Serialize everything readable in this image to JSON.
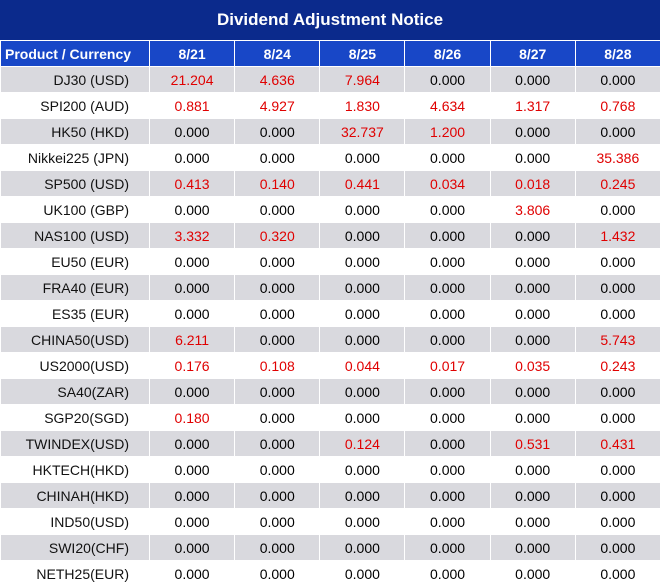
{
  "title": "Dividend Adjustment Notice",
  "header": {
    "product_label": "Product / Currency",
    "dates": [
      "8/21",
      "8/24",
      "8/25",
      "8/26",
      "8/27",
      "8/28"
    ]
  },
  "colors": {
    "title_bg": "#0b2a8c",
    "header_bg": "#1847c7",
    "highlight_text": "#e00000",
    "stripe": "#d9d9de"
  },
  "rows": [
    {
      "product": "DJ30 (USD)",
      "values": [
        "21.204",
        "4.636",
        "7.964",
        "0.000",
        "0.000",
        "0.000"
      ]
    },
    {
      "product": "SPI200 (AUD)",
      "values": [
        "0.881",
        "4.927",
        "1.830",
        "4.634",
        "1.317",
        "0.768"
      ]
    },
    {
      "product": "HK50 (HKD)",
      "values": [
        "0.000",
        "0.000",
        "32.737",
        "1.200",
        "0.000",
        "0.000"
      ]
    },
    {
      "product": "Nikkei225 (JPN)",
      "values": [
        "0.000",
        "0.000",
        "0.000",
        "0.000",
        "0.000",
        "35.386"
      ]
    },
    {
      "product": "SP500 (USD)",
      "values": [
        "0.413",
        "0.140",
        "0.441",
        "0.034",
        "0.018",
        "0.245"
      ]
    },
    {
      "product": "UK100 (GBP)",
      "values": [
        "0.000",
        "0.000",
        "0.000",
        "0.000",
        "3.806",
        "0.000"
      ]
    },
    {
      "product": "NAS100 (USD)",
      "values": [
        "3.332",
        "0.320",
        "0.000",
        "0.000",
        "0.000",
        "1.432"
      ]
    },
    {
      "product": "EU50 (EUR)",
      "values": [
        "0.000",
        "0.000",
        "0.000",
        "0.000",
        "0.000",
        "0.000"
      ]
    },
    {
      "product": "FRA40 (EUR)",
      "values": [
        "0.000",
        "0.000",
        "0.000",
        "0.000",
        "0.000",
        "0.000"
      ]
    },
    {
      "product": "ES35 (EUR)",
      "values": [
        "0.000",
        "0.000",
        "0.000",
        "0.000",
        "0.000",
        "0.000"
      ]
    },
    {
      "product": "CHINA50(USD)",
      "values": [
        "6.211",
        "0.000",
        "0.000",
        "0.000",
        "0.000",
        "5.743"
      ]
    },
    {
      "product": "US2000(USD)",
      "values": [
        "0.176",
        "0.108",
        "0.044",
        "0.017",
        "0.035",
        "0.243"
      ]
    },
    {
      "product": "SA40(ZAR)",
      "values": [
        "0.000",
        "0.000",
        "0.000",
        "0.000",
        "0.000",
        "0.000"
      ]
    },
    {
      "product": "SGP20(SGD)",
      "values": [
        "0.180",
        "0.000",
        "0.000",
        "0.000",
        "0.000",
        "0.000"
      ]
    },
    {
      "product": "TWINDEX(USD)",
      "values": [
        "0.000",
        "0.000",
        "0.124",
        "0.000",
        "0.531",
        "0.431"
      ]
    },
    {
      "product": "HKTECH(HKD)",
      "values": [
        "0.000",
        "0.000",
        "0.000",
        "0.000",
        "0.000",
        "0.000"
      ]
    },
    {
      "product": "CHINAH(HKD)",
      "values": [
        "0.000",
        "0.000",
        "0.000",
        "0.000",
        "0.000",
        "0.000"
      ]
    },
    {
      "product": "IND50(USD)",
      "values": [
        "0.000",
        "0.000",
        "0.000",
        "0.000",
        "0.000",
        "0.000"
      ]
    },
    {
      "product": "SWI20(CHF)",
      "values": [
        "0.000",
        "0.000",
        "0.000",
        "0.000",
        "0.000",
        "0.000"
      ]
    },
    {
      "product": "NETH25(EUR)",
      "values": [
        "0.000",
        "0.000",
        "0.000",
        "0.000",
        "0.000",
        "0.000"
      ]
    }
  ]
}
